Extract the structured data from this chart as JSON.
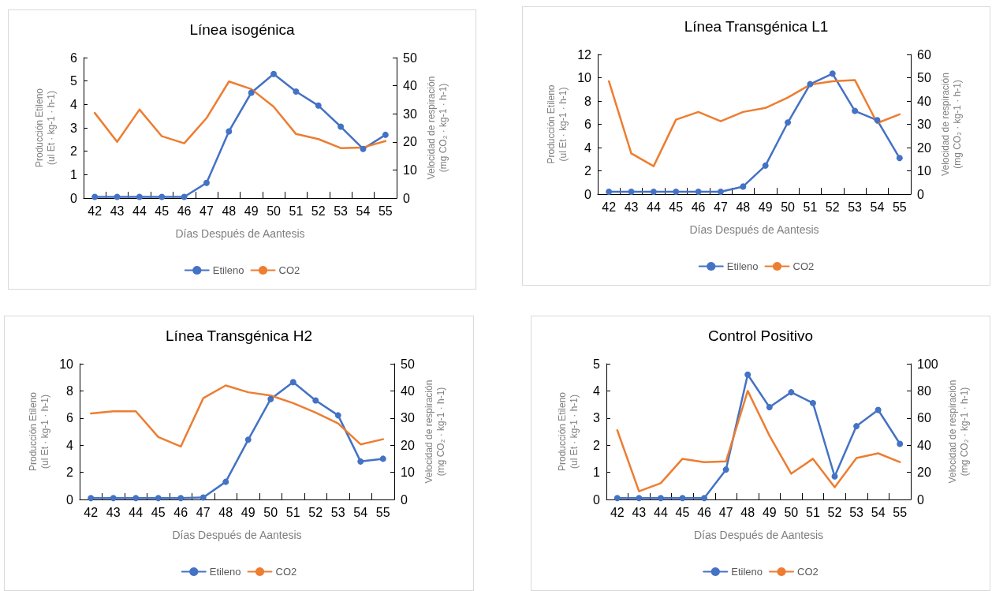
{
  "chart_data": [
    {
      "type": "line",
      "title": "Línea isogénica",
      "xlabel": "Días Después de Aantesis",
      "ylabel": "Producción Etileno\n(ul Et · kg-1 · h-1)",
      "y2label": "Velocidad de respiración\n(mg CO₂ · kg-1 · h-1)",
      "categories": [
        "42",
        "43",
        "44",
        "45",
        "46",
        "47",
        "48",
        "49",
        "50",
        "51",
        "52",
        "53",
        "54",
        "55"
      ],
      "ylim": [
        0,
        6
      ],
      "yticks": [
        0,
        1,
        2,
        3,
        4,
        5,
        6
      ],
      "y2lim": [
        0,
        50
      ],
      "y2ticks": [
        0,
        10,
        20,
        30,
        40,
        50
      ],
      "grid": false,
      "legend": "bottom",
      "series": [
        {
          "name": "Etileno",
          "color": "#4472c4",
          "marker": "circle",
          "values": [
            0.05,
            0.05,
            0.05,
            0.05,
            0.05,
            0.65,
            2.85,
            4.5,
            5.3,
            4.55,
            3.95,
            3.05,
            2.1,
            2.7
          ]
        },
        {
          "name": "CO2",
          "color": "#ed7d31",
          "marker": "none",
          "axis": "y2",
          "values": [
            30.3,
            20,
            31.5,
            22,
            19.5,
            28.5,
            41.5,
            38.8,
            32.5,
            22.8,
            21,
            17.8,
            18,
            20.3
          ]
        }
      ]
    },
    {
      "type": "line",
      "title": "Línea Transgénica L1",
      "xlabel": "Días Después de Aantesis",
      "ylabel": "Producción Etileno\n(ul Et · kg-1 · h-1)",
      "y2label": "Velocidad de respiración\n(mg CO₂ · kg-1 · h-1)",
      "categories": [
        "42",
        "43",
        "44",
        "45",
        "46",
        "47",
        "48",
        "49",
        "50",
        "51",
        "52",
        "53",
        "54",
        "55"
      ],
      "ylim": [
        0,
        12
      ],
      "yticks": [
        0,
        2,
        4,
        6,
        8,
        10,
        12
      ],
      "y2lim": [
        0,
        60
      ],
      "y2ticks": [
        0,
        10,
        20,
        30,
        40,
        50,
        60
      ],
      "grid": false,
      "legend": "bottom",
      "series": [
        {
          "name": "Etileno",
          "color": "#4472c4",
          "marker": "circle",
          "values": [
            0.2,
            0.2,
            0.2,
            0.2,
            0.2,
            0.2,
            0.65,
            2.45,
            6.15,
            9.45,
            10.35,
            7.15,
            6.35,
            3.1
          ]
        },
        {
          "name": "CO2",
          "color": "#ed7d31",
          "marker": "none",
          "axis": "y2",
          "values": [
            48.5,
            17.5,
            12,
            32,
            35.3,
            31.3,
            35.3,
            37,
            41.5,
            47,
            48.5,
            49,
            30.5,
            34.3
          ]
        }
      ]
    },
    {
      "type": "line",
      "title": "Línea Transgénica H2",
      "xlabel": "Días Después de Aantesis",
      "ylabel": "Producción Etileno\n(ul Et · kg-1 · h-1)",
      "y2label": "Velocidad de respiración\n(mg CO₂ · kg-1 · h-1)",
      "categories": [
        "42",
        "43",
        "44",
        "45",
        "46",
        "47",
        "48",
        "49",
        "50",
        "51",
        "52",
        "53",
        "54",
        "55"
      ],
      "ylim": [
        0,
        10
      ],
      "yticks": [
        0,
        2,
        4,
        6,
        8,
        10
      ],
      "y2lim": [
        0,
        50
      ],
      "y2ticks": [
        0,
        10,
        20,
        30,
        40,
        50
      ],
      "grid": false,
      "legend": "bottom",
      "series": [
        {
          "name": "Etileno",
          "color": "#4472c4",
          "marker": "circle",
          "values": [
            0.1,
            0.1,
            0.1,
            0.1,
            0.1,
            0.15,
            1.3,
            4.4,
            7.4,
            8.65,
            7.3,
            6.2,
            2.8,
            3.0
          ]
        },
        {
          "name": "CO2",
          "color": "#ed7d31",
          "marker": "none",
          "axis": "y2",
          "values": [
            31.7,
            32.5,
            32.5,
            23,
            19.5,
            37.3,
            42,
            39.5,
            38.3,
            35.5,
            32,
            28,
            20.3,
            22.2
          ]
        }
      ]
    },
    {
      "type": "line",
      "title": "Control Positivo",
      "xlabel": "Días Después de Aantesis",
      "ylabel": "Producción Etileno\n(ul Et · kg-1 · h-1)",
      "y2label": "Velocidad de respiración\n(mg CO₂ · kg-1 · h-1)",
      "categories": [
        "42",
        "43",
        "44",
        "45",
        "46",
        "47",
        "48",
        "49",
        "50",
        "51",
        "52",
        "53",
        "54",
        "55"
      ],
      "ylim": [
        0,
        5
      ],
      "yticks": [
        0,
        1,
        2,
        3,
        4,
        5
      ],
      "y2lim": [
        0,
        100
      ],
      "y2ticks": [
        0,
        20,
        40,
        60,
        80,
        100
      ],
      "grid": false,
      "legend": "bottom",
      "series": [
        {
          "name": "Etileno",
          "color": "#4472c4",
          "marker": "circle",
          "values": [
            0.05,
            0.05,
            0.05,
            0.05,
            0.05,
            1.1,
            4.6,
            3.4,
            3.95,
            3.55,
            0.85,
            2.7,
            3.3,
            2.05
          ]
        },
        {
          "name": "CO2",
          "color": "#ed7d31",
          "marker": "none",
          "axis": "y2",
          "values": [
            51,
            6,
            12,
            30,
            27.5,
            28,
            80,
            47,
            19,
            30,
            9,
            30.5,
            34,
            27.5
          ]
        }
      ]
    }
  ]
}
